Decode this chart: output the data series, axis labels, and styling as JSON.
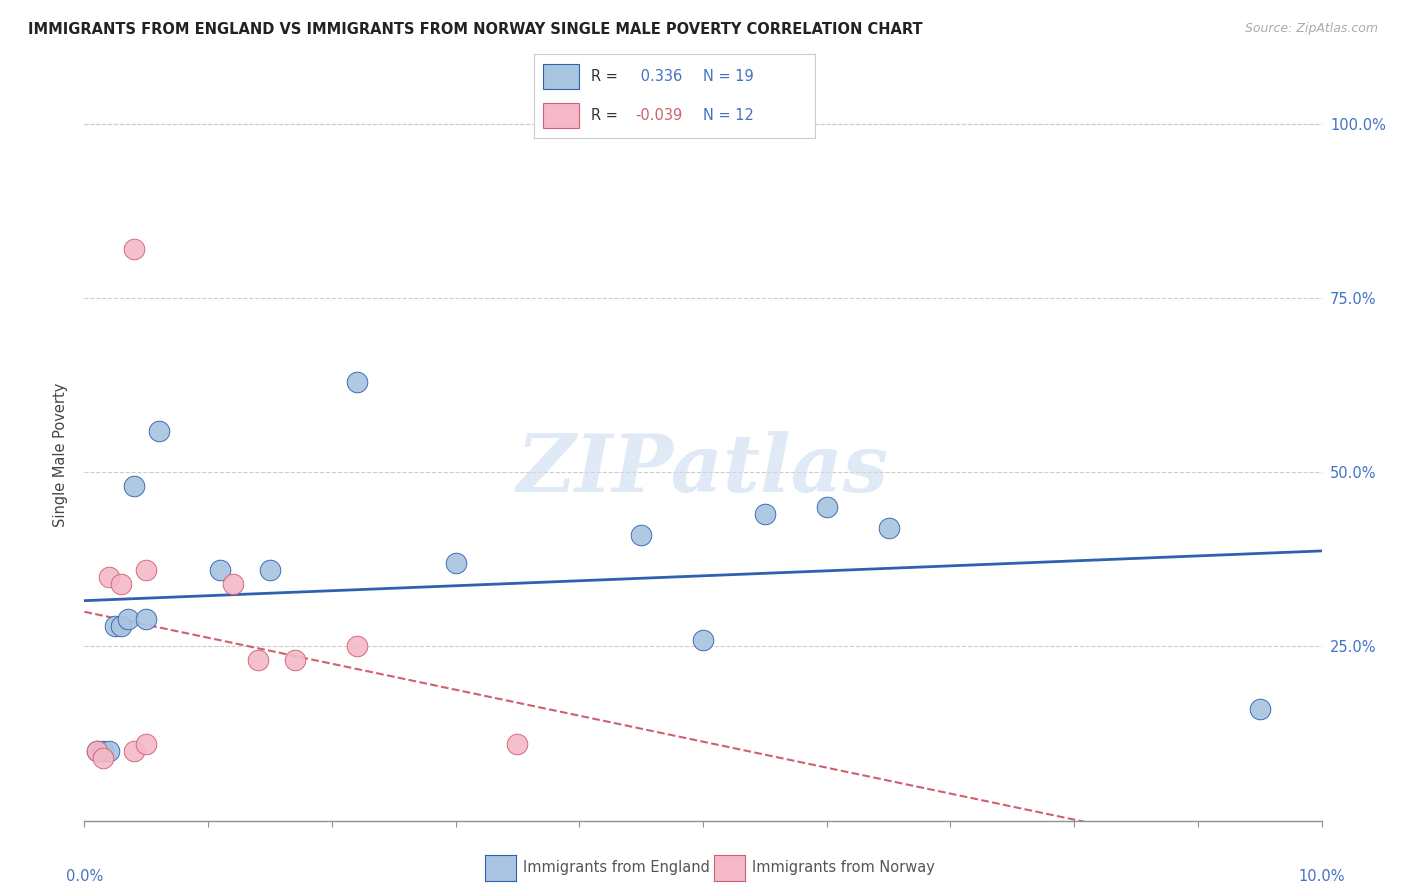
{
  "title": "IMMIGRANTS FROM ENGLAND VS IMMIGRANTS FROM NORWAY SINGLE MALE POVERTY CORRELATION CHART",
  "source": "Source: ZipAtlas.com",
  "ylabel": "Single Male Poverty",
  "xlim": [
    0.0,
    10.0
  ],
  "ylim": [
    0.0,
    105.0
  ],
  "england_R": 0.336,
  "england_N": 19,
  "norway_R": -0.039,
  "norway_N": 12,
  "england_color": "#a8c4e0",
  "england_line_color": "#3060b0",
  "norway_color": "#f4b8c8",
  "norway_line_color": "#d06070",
  "england_x": [
    0.1,
    0.15,
    0.2,
    0.25,
    0.3,
    0.35,
    0.4,
    0.5,
    0.6,
    1.1,
    1.5,
    2.2,
    3.0,
    4.5,
    5.0,
    5.5,
    6.0,
    6.5,
    9.5
  ],
  "england_y": [
    10,
    10,
    10,
    28,
    28,
    29,
    48,
    29,
    56,
    36,
    36,
    63,
    37,
    41,
    26,
    44,
    45,
    42,
    16
  ],
  "norway_x": [
    0.1,
    0.15,
    0.2,
    0.3,
    0.4,
    0.5,
    0.5,
    1.2,
    1.4,
    1.7,
    2.2,
    3.5
  ],
  "norway_y": [
    10,
    9,
    35,
    34,
    10,
    11,
    36,
    34,
    23,
    23,
    25,
    11
  ],
  "norway_outlier_x": 0.4,
  "norway_outlier_y": 82,
  "watermark": "ZIPatlas"
}
